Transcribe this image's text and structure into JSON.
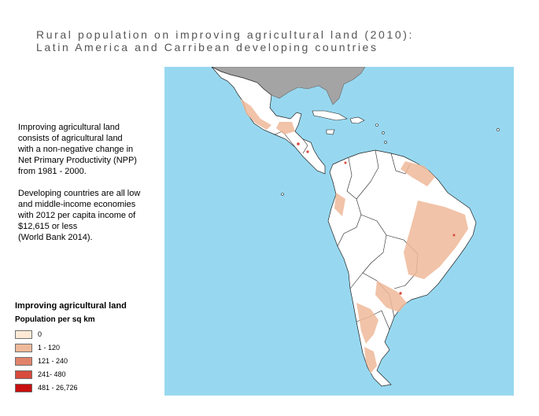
{
  "title": {
    "line1": "Rural population on improving agricultural land (2010):",
    "line2": "Latin America and Carribean developing countries"
  },
  "description": {
    "paragraph1": "Improving agricultural land\nconsists of agricultural land\nwith a non-negative change in\nNet Primary Productivity (NPP)\nfrom 1981 - 2000.",
    "paragraph2": "Developing countries are all low\nand middle-income economies\nwith 2012 per capita income of\n$12,615 or less\n(World Bank 2014)."
  },
  "legend": {
    "title": "Improving agricultural land",
    "subtitle": "Population per sq km",
    "items": [
      {
        "label": "0",
        "color": "#fde9d6"
      },
      {
        "label": "1 - 120",
        "color": "#efb99a"
      },
      {
        "label": "121 - 240",
        "color": "#e1836a"
      },
      {
        "label": "241- 480",
        "color": "#d74a3c"
      },
      {
        "label": "481 - 26,726",
        "color": "#c8100f"
      }
    ]
  },
  "map_colors": {
    "ocean": "#97d8f0",
    "land": "#ffffff",
    "non_developing_land": "#a4a4a4",
    "border": "#222222",
    "improving_land": "#efb99a",
    "high_density": "#d74a3c"
  }
}
